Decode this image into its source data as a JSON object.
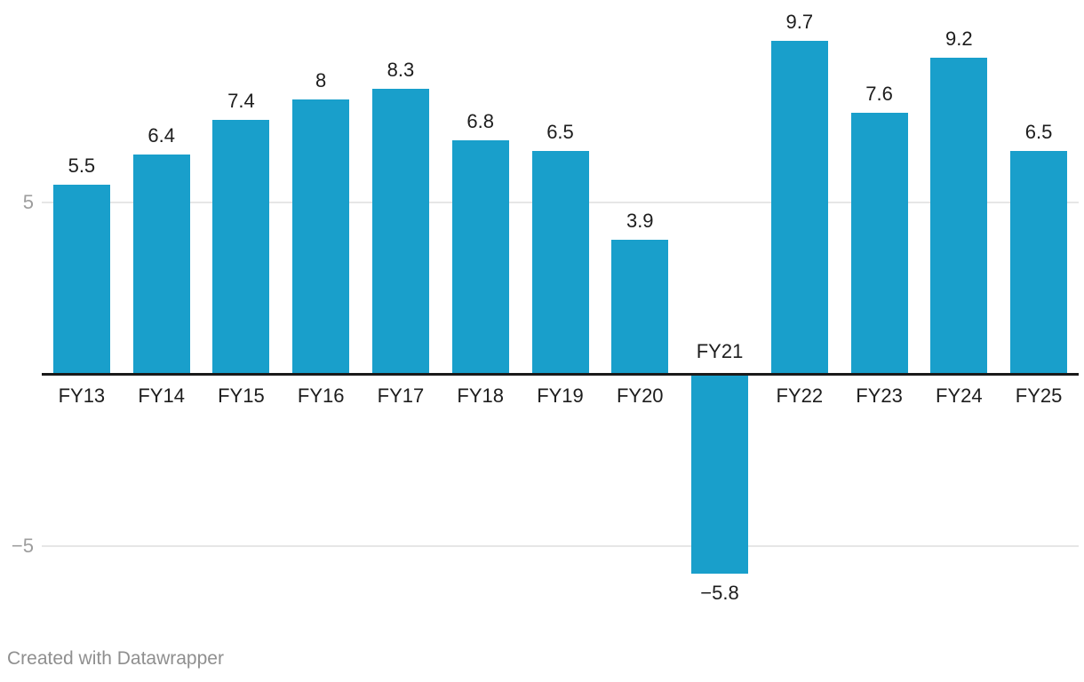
{
  "chart_data": {
    "type": "bar",
    "categories": [
      "FY13",
      "FY14",
      "FY15",
      "FY16",
      "FY17",
      "FY18",
      "FY19",
      "FY20",
      "FY21",
      "FY22",
      "FY23",
      "FY24",
      "FY25"
    ],
    "values": [
      5.5,
      6.4,
      7.4,
      8,
      8.3,
      6.8,
      6.5,
      3.9,
      -5.8,
      9.7,
      7.6,
      9.2,
      6.5
    ],
    "value_labels": [
      "5.5",
      "6.4",
      "7.4",
      "8",
      "8.3",
      "6.8",
      "6.5",
      "3.9",
      "−5.8",
      "9.7",
      "7.6",
      "9.2",
      "6.5"
    ],
    "y_ticks": [
      {
        "value": 5,
        "label": "5"
      },
      {
        "value": -5,
        "label": "−5"
      }
    ],
    "ylim": [
      -7,
      11
    ],
    "grid": "horizontal",
    "legend": "none",
    "colors": {
      "bar": "#199fcb",
      "axis_line": "#1a1a1a",
      "gridline": "#e6e6e6",
      "y_tick_label": "#9d9d9d",
      "value_label": "#1d1d1d",
      "category_label": "#1d1d1d"
    }
  },
  "footer": {
    "credit": "Created with Datawrapper"
  }
}
